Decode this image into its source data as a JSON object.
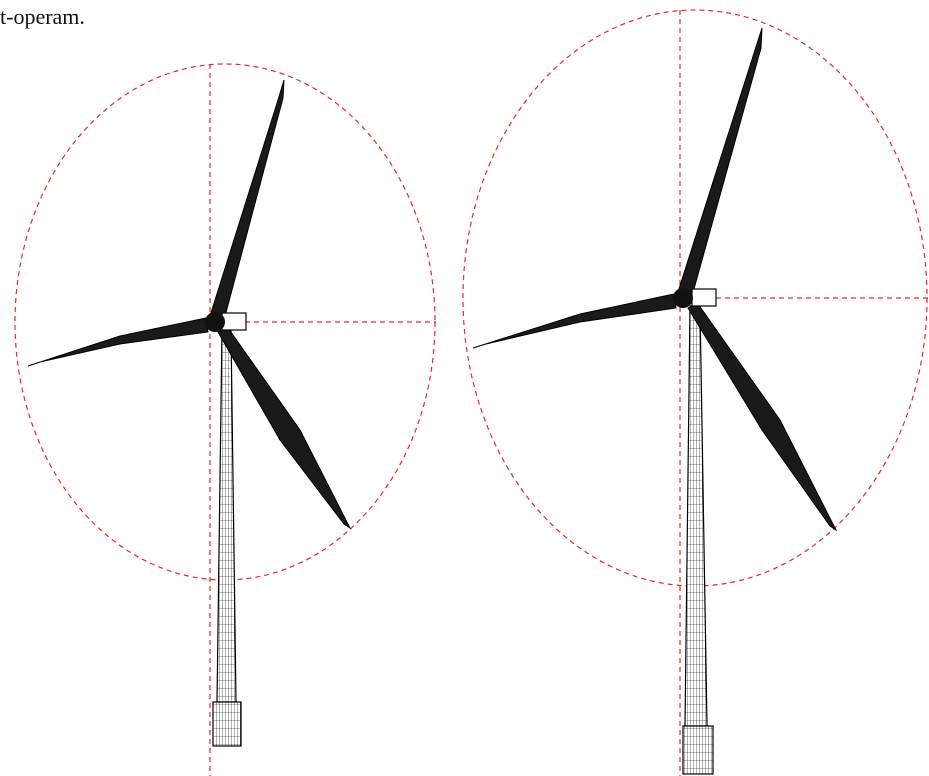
{
  "caption": "t-operam."
}
